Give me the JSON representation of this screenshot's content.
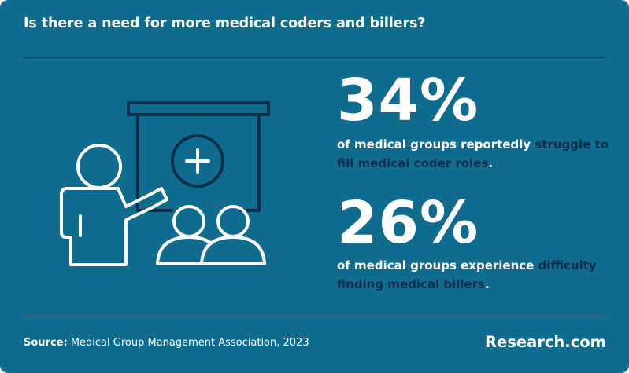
{
  "title": "Is there a need for more medical coders and billers?",
  "colors": {
    "background": "#0f6c8f",
    "text": "#ffffff",
    "highlight": "#0b2f4a",
    "divider": "#0b3550",
    "illustration_dark": "#0b2f4a"
  },
  "illustration": {
    "icons": [
      "presenter-icon",
      "presentation-board-icon",
      "medical-plus-icon",
      "audience-icon"
    ]
  },
  "stats": [
    {
      "number": "34%",
      "text_before": "of medical groups reportedly ",
      "highlight": "struggle to fill medical coder roles",
      "text_after": "."
    },
    {
      "number": "26%",
      "text_before": "of medical groups experience ",
      "highlight": "difficulty finding medical billers",
      "text_after": "."
    }
  ],
  "footer": {
    "source_label": "Source:",
    "source_text": " Medical Group Management Association, 2023",
    "brand": "Research.com"
  }
}
